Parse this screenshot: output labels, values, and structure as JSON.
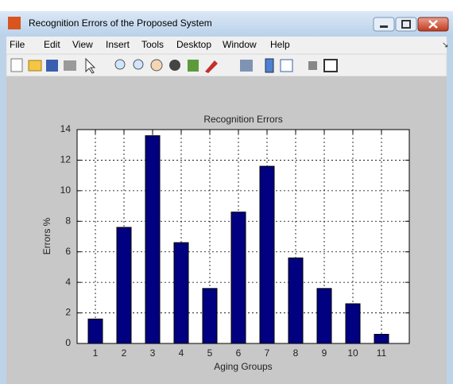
{
  "window": {
    "title": "Recognition Errors of the Proposed System",
    "menu": [
      "File",
      "Edit",
      "View",
      "Insert",
      "Tools",
      "Desktop",
      "Window",
      "Help"
    ]
  },
  "chart_data": {
    "type": "bar",
    "title": "Recognition Errors",
    "x_label": "Aging Groups",
    "y_label": "Errors %",
    "categories": [
      "1",
      "2",
      "3",
      "4",
      "5",
      "6",
      "7",
      "8",
      "9",
      "10",
      "11"
    ],
    "values": [
      1.6,
      7.6,
      13.6,
      6.6,
      3.6,
      8.6,
      11.6,
      5.6,
      3.6,
      2.6,
      0.6
    ],
    "color": "#000080",
    "ylim": [
      0,
      14
    ],
    "yticks": [
      0,
      2,
      4,
      6,
      8,
      10,
      12,
      14
    ],
    "grid": true
  }
}
